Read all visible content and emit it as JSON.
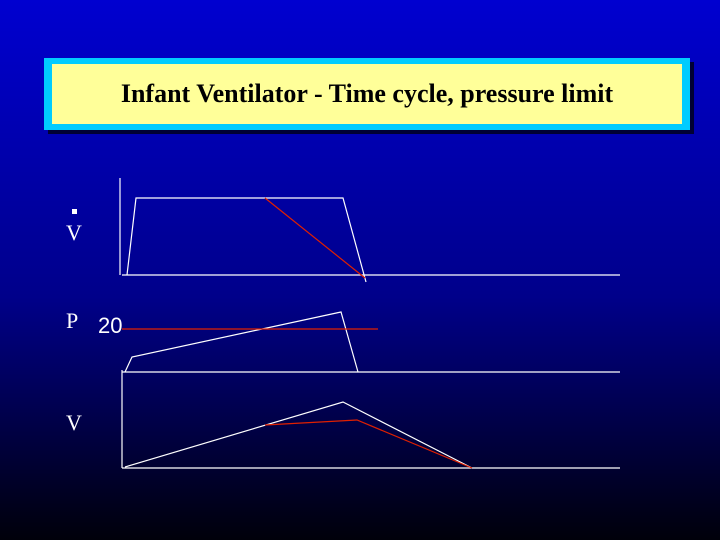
{
  "title": "Infant Ventilator - Time cycle, pressure limit",
  "labels": {
    "flow": "V",
    "pressure": "P",
    "pressure_limit": "20",
    "volume": "V"
  }
}
